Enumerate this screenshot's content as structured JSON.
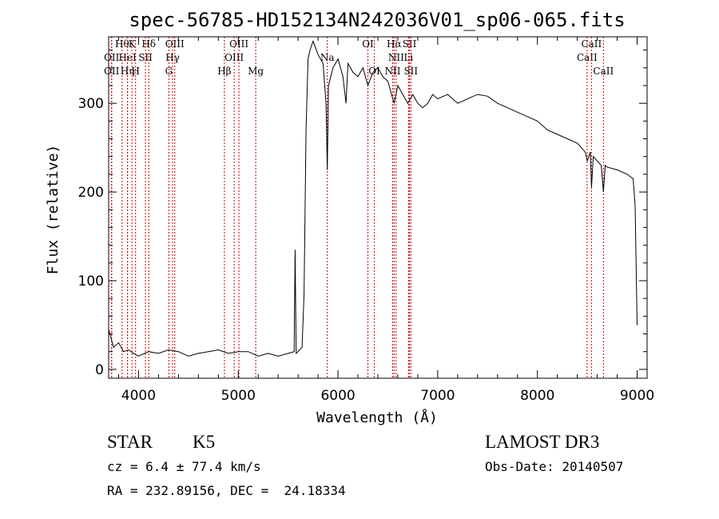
{
  "chart_data": {
    "type": "line",
    "title": "spec-56785-HD152134N242036V01_sp06-065.fits",
    "xlabel": "Wavelength (Å)",
    "ylabel": "Flux (relative)",
    "xlim": [
      3700,
      9100
    ],
    "ylim": [
      -10,
      375
    ],
    "x_ticks": [
      4000,
      5000,
      6000,
      7000,
      8000,
      9000
    ],
    "y_ticks": [
      0,
      100,
      200,
      300
    ],
    "grid": false,
    "series": [
      {
        "x": [
          3700,
          3750,
          3800,
          3850,
          3900,
          3950,
          4000,
          4100,
          4200,
          4300,
          4400,
          4500,
          4600,
          4700,
          4800,
          4900,
          5000,
          5100,
          5200,
          5300,
          5400,
          5500,
          5560,
          5570,
          5580,
          5600,
          5640,
          5660,
          5680,
          5700,
          5720,
          5750,
          5800,
          5850,
          5880,
          5893,
          5905,
          5950,
          6000,
          6050,
          6080,
          6100,
          6150,
          6200,
          6250,
          6300,
          6350,
          6400,
          6450,
          6500,
          6563,
          6600,
          6650,
          6700,
          6750,
          6800,
          6850,
          6900,
          6950,
          7000,
          7100,
          7200,
          7300,
          7400,
          7500,
          7600,
          7700,
          7800,
          7900,
          8000,
          8100,
          8200,
          8300,
          8400,
          8480,
          8500,
          8530,
          8542,
          8560,
          8600,
          8640,
          8662,
          8680,
          8700,
          8800,
          8900,
          8960,
          8980,
          9000
        ],
        "values": [
          45,
          25,
          30,
          20,
          22,
          18,
          15,
          20,
          18,
          22,
          20,
          15,
          18,
          20,
          22,
          18,
          20,
          20,
          15,
          18,
          15,
          18,
          20,
          135,
          18,
          20,
          25,
          85,
          270,
          350,
          360,
          370,
          355,
          345,
          300,
          225,
          320,
          340,
          350,
          330,
          300,
          345,
          335,
          330,
          340,
          320,
          335,
          340,
          330,
          325,
          300,
          320,
          310,
          300,
          310,
          300,
          295,
          300,
          310,
          305,
          310,
          300,
          305,
          310,
          308,
          300,
          295,
          290,
          285,
          280,
          270,
          265,
          260,
          255,
          245,
          235,
          245,
          205,
          240,
          235,
          230,
          200,
          230,
          228,
          225,
          220,
          215,
          185,
          50
        ]
      }
    ],
    "lines": [
      {
        "wl": 3835,
        "label": "Hθ",
        "row": 0
      },
      {
        "wl": 3730,
        "label": "OII",
        "row": 1
      },
      {
        "wl": 3730,
        "label": "OII",
        "row": 2
      },
      {
        "wl": 3889,
        "label": "HeI",
        "row": 1
      },
      {
        "wl": 3889,
        "label": "Hη",
        "row": 2
      },
      {
        "wl": 3934,
        "label": "K",
        "row": 0
      },
      {
        "wl": 3970,
        "label": "H",
        "row": 2
      },
      {
        "wl": 4069,
        "label": "SII",
        "row": 1
      },
      {
        "wl": 4102,
        "label": "Hδ",
        "row": 0
      },
      {
        "wl": 4304,
        "label": "G",
        "row": 2
      },
      {
        "wl": 4341,
        "label": "Hγ",
        "row": 1
      },
      {
        "wl": 4363,
        "label": "OIII",
        "row": 0
      },
      {
        "wl": 4861,
        "label": "Hβ",
        "row": 2
      },
      {
        "wl": 4959,
        "label": "OIII",
        "row": 1
      },
      {
        "wl": 5007,
        "label": "OIII",
        "row": 0
      },
      {
        "wl": 5175,
        "label": "Mg",
        "row": 2
      },
      {
        "wl": 5893,
        "label": "Na",
        "row": 1
      },
      {
        "wl": 6300,
        "label": "OI",
        "row": 0
      },
      {
        "wl": 6364,
        "label": "OI",
        "row": 2
      },
      {
        "wl": 6548,
        "label": "NII",
        "row": 2
      },
      {
        "wl": 6563,
        "label": "Hα",
        "row": 0
      },
      {
        "wl": 6583,
        "label": "NII",
        "row": 1
      },
      {
        "wl": 6707,
        "label": "Li",
        "row": 1
      },
      {
        "wl": 6717,
        "label": "SII",
        "row": 0
      },
      {
        "wl": 6731,
        "label": "SII",
        "row": 2
      },
      {
        "wl": 8498,
        "label": "CaII",
        "row": 1
      },
      {
        "wl": 8542,
        "label": "CaII",
        "row": 0
      },
      {
        "wl": 8662,
        "label": "CaII",
        "row": 2
      }
    ],
    "colors": {
      "line": "#000000",
      "marker": "#cc0000"
    }
  },
  "footer": {
    "object_class": "STAR",
    "subclass": "K5",
    "survey": "LAMOST DR3",
    "cz": "cz = 6.4 ± 77.4 km/s",
    "obs_date": "Obs-Date: 20140507",
    "coords": "RA = 232.89156, DEC =  24.18334"
  }
}
